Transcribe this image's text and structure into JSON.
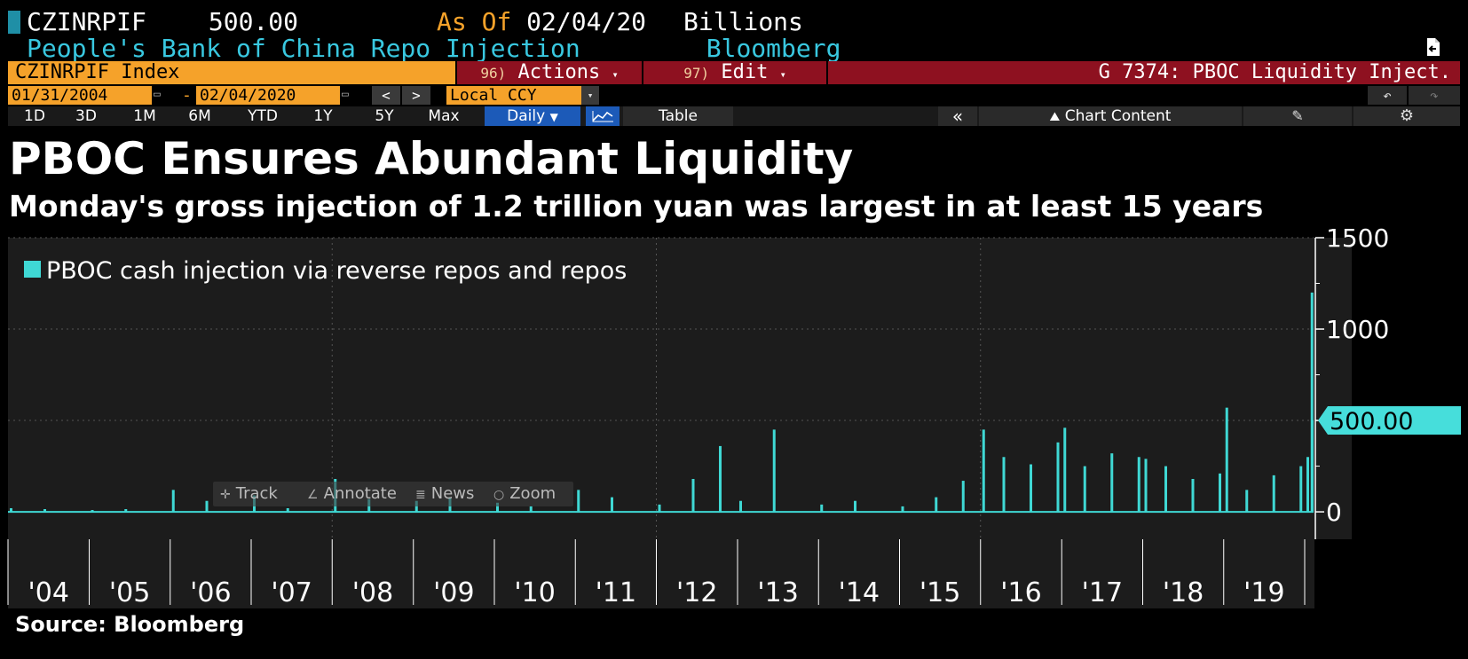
{
  "header": {
    "ticker": "CZINRPIF",
    "last_value": "500.00",
    "as_of_label": "As Of",
    "as_of_date": "02/04/20",
    "units": "Billions",
    "description": "People's Bank of China Repo Injection",
    "source_tag": "Bloomberg"
  },
  "toolbar": {
    "security": "CZINRPIF Index",
    "actions_num": "96)",
    "actions_label": "Actions",
    "edit_num": "97)",
    "edit_label": "Edit",
    "graph_title": "G 7374: PBOC Liquidity Inject.",
    "start_date": "01/31/2004",
    "end_date": "02/04/2020",
    "currency": "Local CCY",
    "periods": [
      "1D",
      "3D",
      "1M",
      "6M",
      "YTD",
      "1Y",
      "5Y",
      "Max"
    ],
    "frequency": "Daily",
    "table_label": "Table",
    "chart_content_label": "Chart Content"
  },
  "overlay": {
    "track": "Track",
    "annotate": "Annotate",
    "news": "News",
    "zoom": "Zoom"
  },
  "colors": {
    "background": "#000000",
    "plot_bg": "#1c1c1c",
    "bar": "#3fd8d4",
    "orange": "#f5a22a",
    "red": "#8e1120",
    "header_cyan": "#39c8e0"
  },
  "chart_data": {
    "type": "bar",
    "title": "PBOC Ensures Abundant Liquidity",
    "subtitle": "Monday's gross injection of 1.2 trillion yuan was largest in at least 15 years",
    "legend": "PBOC cash injection via reverse repos and repos",
    "legend_position": "top-left",
    "y_axis_position": "right",
    "ylim": [
      -150,
      1500
    ],
    "yticks": [
      0,
      500,
      1000,
      1500
    ],
    "ytick_labels": [
      "0",
      "500.00",
      "1000",
      "1500"
    ],
    "last_value_label": "500.00",
    "x_years": [
      "'04",
      "'05",
      "'06",
      "'07",
      "'08",
      "'09",
      "'10",
      "'11",
      "'12",
      "'13",
      "'14",
      "'15",
      "'16",
      "'17",
      "'18",
      "'19"
    ],
    "x": [
      "2004-01",
      "2004-06",
      "2005-01",
      "2005-06",
      "2006-01",
      "2006-06",
      "2007-01",
      "2007-06",
      "2008-01",
      "2008-06",
      "2009-01",
      "2009-06",
      "2010-01",
      "2010-06",
      "2011-01",
      "2011-06",
      "2012-01",
      "2012-06",
      "2012-10",
      "2013-01",
      "2013-06",
      "2014-01",
      "2014-06",
      "2015-01",
      "2015-06",
      "2015-10",
      "2016-01",
      "2016-04",
      "2016-08",
      "2016-12",
      "2017-01",
      "2017-04",
      "2017-08",
      "2017-12",
      "2018-01",
      "2018-04",
      "2018-08",
      "2018-12",
      "2019-01",
      "2019-04",
      "2019-08",
      "2019-12",
      "2020-01",
      "2020-02-03",
      "2020-02-04"
    ],
    "values": [
      20,
      15,
      10,
      15,
      120,
      60,
      90,
      20,
      180,
      70,
      60,
      80,
      50,
      30,
      120,
      80,
      40,
      180,
      360,
      60,
      450,
      40,
      60,
      30,
      80,
      170,
      450,
      300,
      260,
      380,
      460,
      250,
      320,
      300,
      290,
      250,
      180,
      210,
      570,
      120,
      200,
      250,
      300,
      1200,
      500
    ],
    "grid": "dotted",
    "source": "Source: Bloomberg"
  }
}
